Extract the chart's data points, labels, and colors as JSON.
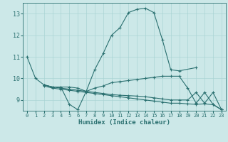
{
  "xlabel": "Humidex (Indice chaleur)",
  "ylabel": "",
  "bg_color": "#cce8e8",
  "line_color": "#2a7070",
  "marker": "+",
  "xlim": [
    -0.5,
    23.5
  ],
  "ylim": [
    8.5,
    13.5
  ],
  "yticks": [
    9,
    10,
    11,
    12,
    13
  ],
  "xticks": [
    0,
    1,
    2,
    3,
    4,
    5,
    6,
    7,
    8,
    9,
    10,
    11,
    12,
    13,
    14,
    15,
    16,
    17,
    18,
    19,
    20,
    21,
    22,
    23
  ],
  "curves": [
    {
      "x": [
        0,
        1,
        2,
        3,
        4,
        5,
        6,
        7,
        8,
        9,
        10,
        11,
        12,
        13,
        14,
        15,
        16,
        17,
        18,
        20
      ],
      "y": [
        11.0,
        10.0,
        9.7,
        9.6,
        9.6,
        8.8,
        8.55,
        9.4,
        10.4,
        11.15,
        12.0,
        12.35,
        13.05,
        13.2,
        13.25,
        13.05,
        11.8,
        10.4,
        10.35,
        10.5
      ]
    },
    {
      "x": [
        2,
        3,
        4,
        5,
        6,
        7,
        8,
        9,
        10,
        11,
        12,
        13,
        14,
        15,
        16,
        17,
        18,
        19,
        20,
        21,
        22,
        23
      ],
      "y": [
        9.7,
        9.6,
        9.6,
        9.6,
        9.55,
        9.4,
        9.55,
        9.65,
        9.8,
        9.85,
        9.9,
        9.95,
        10.0,
        10.05,
        10.1,
        10.1,
        10.1,
        9.55,
        8.85,
        9.35,
        8.8,
        8.55
      ]
    },
    {
      "x": [
        2,
        3,
        4,
        5,
        6,
        7,
        8,
        9,
        10,
        11,
        12,
        13,
        14,
        15,
        16,
        17,
        18,
        19,
        20,
        21,
        22,
        23
      ],
      "y": [
        9.65,
        9.55,
        9.5,
        9.45,
        9.4,
        9.35,
        9.3,
        9.25,
        9.2,
        9.15,
        9.1,
        9.05,
        9.0,
        8.95,
        8.9,
        8.85,
        8.85,
        8.82,
        8.8,
        8.82,
        8.78,
        8.55
      ]
    },
    {
      "x": [
        2,
        3,
        4,
        5,
        6,
        7,
        8,
        9,
        10,
        11,
        12,
        13,
        14,
        15,
        16,
        17,
        18,
        19,
        20,
        21,
        22,
        23
      ],
      "y": [
        9.7,
        9.6,
        9.55,
        9.5,
        9.45,
        9.4,
        9.35,
        9.3,
        9.25,
        9.22,
        9.2,
        9.18,
        9.15,
        9.1,
        9.05,
        9.0,
        9.0,
        9.0,
        9.35,
        8.85,
        9.35,
        8.55
      ]
    }
  ]
}
